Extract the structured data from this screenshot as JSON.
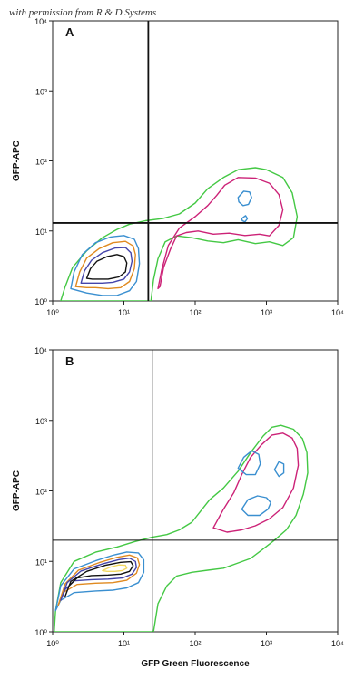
{
  "watermark": "with permission from R & D Systems",
  "chart_data": [
    {
      "type": "contour",
      "panel_label": "A",
      "xlabel": "",
      "ylabel": "GFP-APC",
      "xscale": "log",
      "yscale": "log",
      "xlim": [
        1,
        10000
      ],
      "ylim": [
        1,
        10000
      ],
      "x_ticks": [
        "10⁰",
        "10¹",
        "10²",
        "10³",
        "10⁴"
      ],
      "y_ticks": [
        "10⁰",
        "10¹",
        "10²",
        "10³",
        "10⁴"
      ],
      "gate": {
        "x": 22,
        "y": 13
      },
      "gate_line_weight": "thick",
      "contours": [
        {
          "color": "#44c844",
          "points": [
            [
              1.3,
              1
            ],
            [
              1.5,
              1.6
            ],
            [
              1.9,
              3
            ],
            [
              3,
              5.2
            ],
            [
              5,
              8
            ],
            [
              8,
              10.5
            ],
            [
              12,
              12.5
            ],
            [
              20,
              14
            ],
            [
              35,
              15
            ],
            [
              60,
              17.5
            ],
            [
              100,
              25
            ],
            [
              150,
              40
            ],
            [
              250,
              58
            ],
            [
              400,
              75
            ],
            [
              700,
              80
            ],
            [
              1000,
              75
            ],
            [
              1700,
              58
            ],
            [
              2300,
              35
            ],
            [
              2700,
              16
            ],
            [
              2400,
              8
            ],
            [
              1700,
              6.2
            ],
            [
              1100,
              7
            ],
            [
              700,
              6.6
            ],
            [
              400,
              7.5
            ],
            [
              250,
              6.8
            ],
            [
              150,
              7.2
            ],
            [
              90,
              8
            ],
            [
              55,
              8.5
            ],
            [
              38,
              7
            ],
            [
              30,
              4
            ],
            [
              26,
              2
            ],
            [
              24,
              1
            ]
          ]
        },
        {
          "color": "#cc2277",
          "points": [
            [
              30,
              1.5
            ],
            [
              34,
              2.8
            ],
            [
              42,
              6.2
            ],
            [
              60,
              11
            ],
            [
              100,
              16
            ],
            [
              150,
              23
            ],
            [
              200,
              32
            ],
            [
              260,
              45
            ],
            [
              400,
              58
            ],
            [
              700,
              57
            ],
            [
              1100,
              48
            ],
            [
              1500,
              33
            ],
            [
              1700,
              20
            ],
            [
              1500,
              12
            ],
            [
              1100,
              8.5
            ],
            [
              800,
              9
            ],
            [
              500,
              8.6
            ],
            [
              300,
              9.3
            ],
            [
              180,
              9
            ],
            [
              110,
              10
            ],
            [
              75,
              9.5
            ],
            [
              55,
              8.5
            ],
            [
              45,
              5.5
            ],
            [
              36,
              3
            ],
            [
              32,
              1.6
            ]
          ]
        },
        {
          "color": "#3a8fd0",
          "points": [
            [
              400,
              30
            ],
            [
              480,
              37
            ],
            [
              580,
              36
            ],
            [
              620,
              30
            ],
            [
              560,
              24
            ],
            [
              470,
              23
            ],
            [
              410,
              26
            ]
          ]
        },
        {
          "color": "#3a8fd0",
          "points": [
            [
              450,
              15
            ],
            [
              510,
              16.5
            ],
            [
              540,
              15
            ],
            [
              500,
              13.5
            ],
            [
              460,
              14
            ]
          ]
        },
        {
          "color": "#3a8fd0",
          "points": [
            [
              1.8,
              1.5
            ],
            [
              2,
              2.6
            ],
            [
              2.6,
              4.6
            ],
            [
              4,
              6.8
            ],
            [
              6.5,
              8.2
            ],
            [
              10,
              8.6
            ],
            [
              14,
              7.6
            ],
            [
              16,
              5.6
            ],
            [
              16.5,
              3.4
            ],
            [
              15,
              1.9
            ],
            [
              12,
              1.4
            ],
            [
              8,
              1.2
            ],
            [
              5,
              1.2
            ],
            [
              3,
              1.3
            ]
          ]
        },
        {
          "color": "#e08a20",
          "points": [
            [
              2.1,
              1.6
            ],
            [
              2.4,
              2.6
            ],
            [
              3,
              4.1
            ],
            [
              4.5,
              5.6
            ],
            [
              7,
              6.8
            ],
            [
              10.5,
              7.1
            ],
            [
              13.5,
              6.1
            ],
            [
              14.5,
              4.6
            ],
            [
              14,
              2.9
            ],
            [
              12,
              1.9
            ],
            [
              9,
              1.55
            ],
            [
              6,
              1.5
            ],
            [
              4,
              1.55
            ],
            [
              3,
              1.55
            ]
          ]
        },
        {
          "color": "#4444aa",
          "points": [
            [
              2.5,
              1.8
            ],
            [
              2.8,
              2.7
            ],
            [
              3.5,
              3.8
            ],
            [
              5,
              4.9
            ],
            [
              7.5,
              5.7
            ],
            [
              10.5,
              5.8
            ],
            [
              12.5,
              4.9
            ],
            [
              13,
              3.7
            ],
            [
              12,
              2.6
            ],
            [
              10,
              2.05
            ],
            [
              7,
              1.85
            ],
            [
              5,
              1.8
            ],
            [
              3.6,
              1.8
            ]
          ]
        },
        {
          "color": "#111111",
          "points": [
            [
              3,
              2.1
            ],
            [
              3.4,
              2.9
            ],
            [
              4.2,
              3.7
            ],
            [
              5.8,
              4.3
            ],
            [
              8,
              4.6
            ],
            [
              10,
              4.3
            ],
            [
              11,
              3.5
            ],
            [
              10.5,
              2.6
            ],
            [
              8.5,
              2.2
            ],
            [
              6,
              2.05
            ],
            [
              4.5,
              2.05
            ],
            [
              3.6,
              2.05
            ]
          ]
        }
      ]
    },
    {
      "type": "contour",
      "panel_label": "B",
      "xlabel": "GFP Green Fluorescence",
      "ylabel": "GFP-APC",
      "xscale": "log",
      "yscale": "log",
      "xlim": [
        1,
        10000
      ],
      "ylim": [
        1,
        10000
      ],
      "x_ticks": [
        "10⁰",
        "10¹",
        "10²",
        "10³",
        "10⁴"
      ],
      "y_ticks": [
        "10⁰",
        "10¹",
        "10²",
        "10³",
        "10⁴"
      ],
      "gate": {
        "x": 25,
        "y": 20
      },
      "gate_line_weight": "thin",
      "contours": [
        {
          "color": "#44c844",
          "points": [
            [
              1.05,
              1
            ],
            [
              1.1,
              2
            ],
            [
              1.3,
              5
            ],
            [
              2,
              10
            ],
            [
              4,
              13.5
            ],
            [
              8,
              16
            ],
            [
              14,
              19
            ],
            [
              25,
              22
            ],
            [
              40,
              24
            ],
            [
              60,
              28
            ],
            [
              90,
              36
            ],
            [
              120,
              52
            ],
            [
              160,
              75
            ],
            [
              250,
              110
            ],
            [
              400,
              190
            ],
            [
              600,
              350
            ],
            [
              900,
              600
            ],
            [
              1200,
              800
            ],
            [
              1600,
              850
            ],
            [
              2400,
              750
            ],
            [
              3200,
              550
            ],
            [
              3700,
              350
            ],
            [
              3800,
              180
            ],
            [
              3300,
              90
            ],
            [
              2600,
              45
            ],
            [
              1900,
              28
            ],
            [
              1300,
              20
            ],
            [
              900,
              15
            ],
            [
              600,
              11
            ],
            [
              400,
              9.5
            ],
            [
              250,
              8
            ],
            [
              150,
              7.5
            ],
            [
              90,
              7
            ],
            [
              55,
              6.2
            ],
            [
              40,
              4.5
            ],
            [
              30,
              2.5
            ],
            [
              26,
              1
            ]
          ]
        },
        {
          "color": "#cc2277",
          "points": [
            [
              180,
              30
            ],
            [
              250,
              55
            ],
            [
              350,
              95
            ],
            [
              450,
              170
            ],
            [
              600,
              300
            ],
            [
              850,
              450
            ],
            [
              1200,
              620
            ],
            [
              1700,
              660
            ],
            [
              2300,
              560
            ],
            [
              2700,
              400
            ],
            [
              2800,
              230
            ],
            [
              2400,
              110
            ],
            [
              1700,
              58
            ],
            [
              1100,
              40
            ],
            [
              700,
              32
            ],
            [
              450,
              28
            ],
            [
              280,
              26
            ]
          ]
        },
        {
          "color": "#3a8fd0",
          "points": [
            [
              400,
              210
            ],
            [
              480,
              300
            ],
            [
              620,
              370
            ],
            [
              780,
              330
            ],
            [
              820,
              240
            ],
            [
              700,
              170
            ],
            [
              520,
              170
            ]
          ]
        },
        {
          "color": "#3a8fd0",
          "points": [
            [
              1300,
              200
            ],
            [
              1500,
              260
            ],
            [
              1750,
              240
            ],
            [
              1750,
              180
            ],
            [
              1500,
              160
            ]
          ]
        },
        {
          "color": "#3a8fd0",
          "points": [
            [
              450,
              55
            ],
            [
              550,
              75
            ],
            [
              750,
              85
            ],
            [
              1000,
              80
            ],
            [
              1150,
              68
            ],
            [
              1050,
              55
            ],
            [
              800,
              45
            ],
            [
              550,
              45
            ]
          ]
        },
        {
          "color": "#3a8fd0",
          "points": [
            [
              1.1,
              2
            ],
            [
              1.3,
              4.5
            ],
            [
              2,
              7.8
            ],
            [
              4,
              10.2
            ],
            [
              7,
              12.2
            ],
            [
              11,
              13.6
            ],
            [
              16,
              13.2
            ],
            [
              19,
              10.5
            ],
            [
              19,
              7
            ],
            [
              16,
              5
            ],
            [
              11,
              4.2
            ],
            [
              7,
              3.9
            ],
            [
              4,
              3.8
            ],
            [
              2,
              3.6
            ],
            [
              1.3,
              2.8
            ]
          ]
        },
        {
          "color": "#e08a20",
          "points": [
            [
              1.2,
              2.4
            ],
            [
              1.5,
              4.8
            ],
            [
              2.3,
              7.5
            ],
            [
              4.5,
              9.6
            ],
            [
              8,
              11.4
            ],
            [
              12,
              12.3
            ],
            [
              15.5,
              11.2
            ],
            [
              16.5,
              9
            ],
            [
              15,
              6.8
            ],
            [
              11,
              5.4
            ],
            [
              7,
              5
            ],
            [
              4,
              4.9
            ],
            [
              2.2,
              4.7
            ],
            [
              1.4,
              3.6
            ]
          ]
        },
        {
          "color": "#4444aa",
          "points": [
            [
              1.3,
              2.8
            ],
            [
              1.6,
              5
            ],
            [
              2.5,
              7.3
            ],
            [
              5,
              9.2
            ],
            [
              8.5,
              10.6
            ],
            [
              12,
              11.1
            ],
            [
              14.5,
              10
            ],
            [
              15,
              8.2
            ],
            [
              13,
              6.6
            ],
            [
              9.5,
              5.8
            ],
            [
              6,
              5.6
            ],
            [
              3.5,
              5.5
            ],
            [
              2,
              5.3
            ],
            [
              1.5,
              4
            ]
          ]
        },
        {
          "color": "#111111",
          "points": [
            [
              1.5,
              3.2
            ],
            [
              1.8,
              5.2
            ],
            [
              3,
              7.2
            ],
            [
              5.5,
              8.8
            ],
            [
              9,
              9.7
            ],
            [
              12.5,
              9.9
            ],
            [
              13.5,
              8.7
            ],
            [
              12,
              7.2
            ],
            [
              9,
              6.6
            ],
            [
              6,
              6.4
            ],
            [
              3.5,
              6.3
            ],
            [
              2.2,
              5.8
            ],
            [
              1.7,
              4.5
            ]
          ]
        },
        {
          "color": "#f2d860",
          "points": [
            [
              5,
              7.4
            ],
            [
              6.5,
              8.3
            ],
            [
              8.5,
              8.9
            ],
            [
              10.5,
              8.8
            ],
            [
              11,
              8
            ],
            [
              9.5,
              7.4
            ],
            [
              7.5,
              7.2
            ],
            [
              5.8,
              7.2
            ]
          ]
        }
      ]
    }
  ]
}
